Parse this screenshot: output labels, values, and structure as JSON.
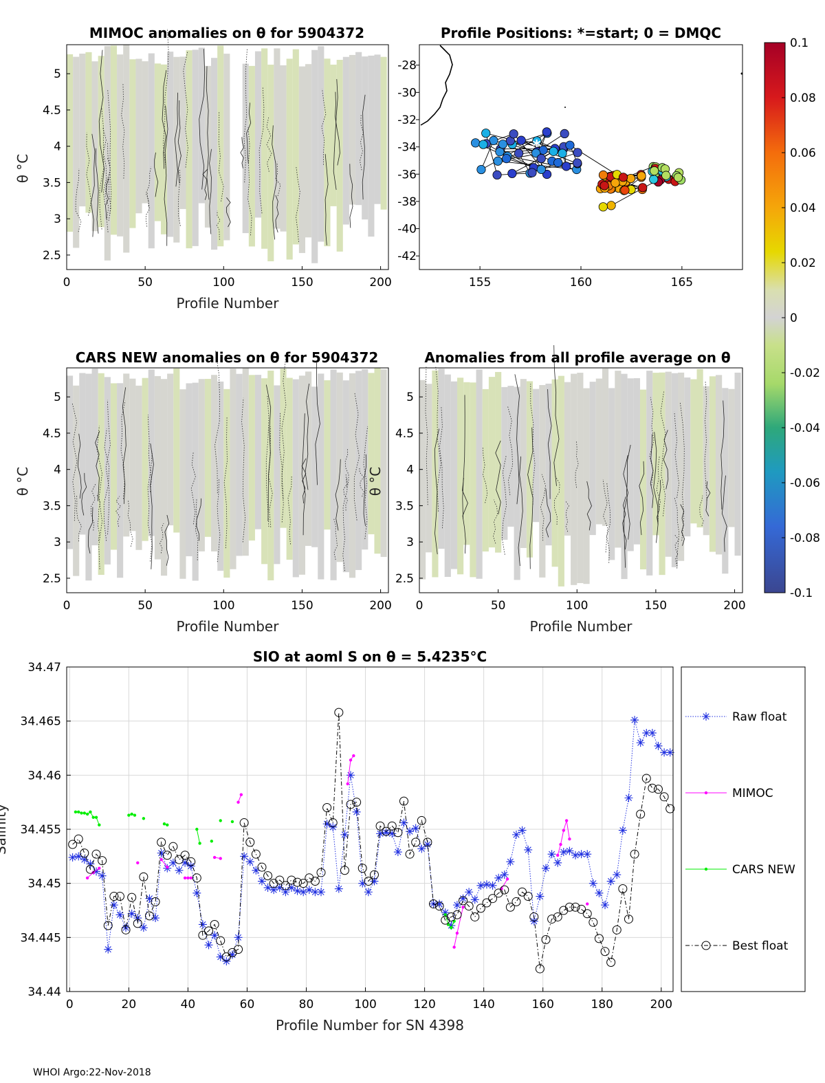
{
  "footer": "WHOI Argo:22-Nov-2018",
  "colorbar": {
    "ticks": [
      "0.1",
      "0.08",
      "0.06",
      "0.04",
      "0.02",
      "0",
      "-0.02",
      "-0.04",
      "-0.06",
      "-0.08",
      "-0.1"
    ],
    "colors": [
      "#a50026",
      "#c81616",
      "#e8460a",
      "#f07d0a",
      "#f0b400",
      "#e6d800",
      "#d2e04a",
      "#cfd3cf",
      "#d3d3d3",
      "#b4de60",
      "#5ec962",
      "#1fa187",
      "#21918c",
      "#2c7fb8",
      "#3b5bc8",
      "#3b4cc0"
    ]
  },
  "chart_data": [
    {
      "type": "heatmap",
      "title": "MIMOC anomalies on θ  for 5904372",
      "xlabel": "Profile Number",
      "ylabel": "θ °C",
      "xlim": [
        0,
        205
      ],
      "ylim": [
        2.3,
        5.4
      ],
      "xticks": [
        "0",
        "50",
        "100",
        "150",
        "200"
      ],
      "yticks": [
        "5",
        "4.5",
        "4",
        "3.5",
        "3",
        "2.5"
      ]
    },
    {
      "type": "scatter",
      "title": "Profile Positions: *=start; 0 = DMQC",
      "xlim": [
        152,
        168
      ],
      "ylim": [
        -43,
        -26.5
      ],
      "xticks": [
        "155",
        "160",
        "165"
      ],
      "yticks": [
        "-28",
        "-30",
        "-32",
        "-34",
        "-36",
        "-38",
        "-40",
        "-42"
      ]
    },
    {
      "type": "heatmap",
      "title": "CARS NEW anomalies on θ for 5904372",
      "xlabel": "Profile Number",
      "ylabel": "θ °C",
      "xlim": [
        0,
        205
      ],
      "ylim": [
        2.3,
        5.4
      ],
      "xticks": [
        "0",
        "50",
        "100",
        "150",
        "200"
      ],
      "yticks": [
        "5",
        "4.5",
        "4",
        "3.5",
        "3",
        "2.5"
      ]
    },
    {
      "type": "heatmap",
      "title": "Anomalies from all profile average on θ",
      "xlabel": "Profile Number",
      "ylabel": "θ °C",
      "xlim": [
        0,
        205
      ],
      "ylim": [
        2.3,
        5.4
      ],
      "xticks": [
        "0",
        "50",
        "100",
        "150",
        "200"
      ],
      "yticks": [
        "5",
        "4.5",
        "4",
        "3.5",
        "3",
        "2.5"
      ]
    },
    {
      "type": "line",
      "title": "SIO at aoml S on θ = 5.4235°C",
      "xlabel": "Profile Number for SN 4398",
      "ylabel": "Salinity",
      "xlim": [
        -1,
        204
      ],
      "ylim": [
        34.44,
        34.47
      ],
      "xticks": [
        "0",
        "20",
        "40",
        "60",
        "80",
        "100",
        "120",
        "140",
        "160",
        "180",
        "200"
      ],
      "yticks": [
        "34.47",
        "34.465",
        "34.46",
        "34.455",
        "34.45",
        "34.445",
        "34.44"
      ],
      "legend": [
        "Raw float",
        "MIMOC",
        "CARS NEW",
        "Best float"
      ],
      "legend_position": "outside-right",
      "series": [
        {
          "name": "Raw float",
          "x": [
            1,
            3,
            5,
            7,
            9,
            11,
            13,
            15,
            17,
            19,
            21,
            23,
            25,
            27,
            29,
            31,
            33,
            35,
            37,
            39,
            41,
            43,
            45,
            47,
            49,
            51,
            53,
            55,
            57,
            59,
            61,
            63,
            65,
            67,
            69,
            71,
            73,
            75,
            77,
            79,
            81,
            83,
            85,
            87,
            89,
            91,
            93,
            95,
            97,
            99,
            101,
            103,
            105,
            107,
            109,
            111,
            113,
            115,
            117,
            119,
            121,
            123,
            125,
            127,
            129,
            131,
            133,
            135,
            137,
            139,
            141,
            143,
            145,
            147,
            149,
            151,
            153,
            155,
            157,
            159,
            161,
            163,
            165,
            167,
            169,
            171,
            173,
            175,
            177,
            179,
            181,
            183,
            185,
            187,
            189,
            191,
            193,
            195,
            197,
            199,
            201,
            203
          ],
          "y": [
            34.4524,
            34.4525,
            34.4522,
            34.4518,
            34.4511,
            34.4507,
            34.4439,
            34.448,
            34.4471,
            34.4459,
            34.4472,
            34.4468,
            34.4459,
            34.4486,
            34.4468,
            34.4528,
            34.4514,
            34.4519,
            34.4512,
            34.4519,
            34.4516,
            34.4491,
            34.4462,
            34.4443,
            34.4452,
            34.4432,
            34.4428,
            34.4434,
            34.445,
            34.4525,
            34.452,
            34.4512,
            34.4502,
            34.4496,
            34.4494,
            34.4496,
            34.4492,
            34.4496,
            34.4493,
            34.4492,
            34.4494,
            34.4492,
            34.4492,
            34.4555,
            34.4552,
            34.4495,
            34.4545,
            34.46,
            34.4566,
            34.45,
            34.4492,
            34.4502,
            34.4546,
            34.4547,
            34.4546,
            34.4529,
            34.4556,
            34.4548,
            34.4551,
            34.4532,
            34.4536,
            34.4481,
            34.4481,
            34.4473,
            34.4461,
            34.448,
            34.4486,
            34.4492,
            34.4485,
            34.4498,
            34.4499,
            34.4498,
            34.4505,
            34.4508,
            34.452,
            34.4545,
            34.4549,
            34.4531,
            34.4465,
            34.4488,
            34.4514,
            34.4527,
            34.4519,
            34.4529,
            34.453,
            34.4526,
            34.4527,
            34.4527,
            34.45,
            34.4491,
            34.448,
            34.4502,
            34.4508,
            34.4549,
            34.4579,
            34.4651,
            34.463,
            34.4639,
            34.4639,
            34.4627,
            34.4621,
            34.4621
          ],
          "color": "#1f2fe0"
        },
        {
          "name": "MIMOC",
          "x": [
            6,
            8,
            10,
            23,
            31,
            33,
            39,
            40,
            41,
            49,
            51,
            57,
            58,
            94,
            95,
            96,
            130,
            131,
            133,
            146,
            148,
            165,
            166,
            167,
            168,
            169,
            175
          ],
          "y": [
            34.4505,
            34.451,
            34.4514,
            34.4519,
            34.4522,
            34.4515,
            34.4505,
            34.4505,
            34.4505,
            34.4524,
            34.4523,
            34.4575,
            34.4582,
            34.4592,
            34.4614,
            34.4618,
            34.4441,
            34.4454,
            34.4478,
            34.4495,
            34.4504,
            34.4526,
            34.4536,
            34.4549,
            34.4558,
            34.4541,
            34.4481
          ],
          "color": "#ff00ff"
        },
        {
          "name": "CARS NEW",
          "x": [
            2,
            3,
            4,
            5,
            6,
            7,
            8,
            9,
            10,
            20,
            21,
            22,
            25,
            32,
            33,
            43,
            44,
            48,
            51,
            55,
            127,
            128,
            129,
            130
          ],
          "y": [
            34.4566,
            34.4566,
            34.4565,
            34.4565,
            34.4564,
            34.4566,
            34.4561,
            34.4561,
            34.4554,
            34.4563,
            34.4564,
            34.4563,
            34.456,
            34.4555,
            34.4554,
            34.455,
            34.4537,
            34.4539,
            34.4558,
            34.4557,
            34.4471,
            34.4462,
            34.4459,
            34.4465
          ],
          "color": "#00ee00"
        },
        {
          "name": "Best float",
          "x": [
            1,
            3,
            5,
            7,
            9,
            11,
            13,
            15,
            17,
            19,
            21,
            23,
            25,
            27,
            29,
            31,
            33,
            35,
            37,
            39,
            41,
            43,
            45,
            47,
            49,
            51,
            53,
            55,
            57,
            59,
            61,
            63,
            65,
            67,
            69,
            71,
            73,
            75,
            77,
            79,
            81,
            83,
            85,
            87,
            89,
            91,
            93,
            95,
            97,
            99,
            101,
            103,
            105,
            107,
            109,
            111,
            113,
            115,
            117,
            119,
            121,
            123,
            125,
            127,
            129,
            131,
            133,
            135,
            137,
            139,
            141,
            143,
            145,
            147,
            149,
            151,
            153,
            155,
            157,
            159,
            161,
            163,
            165,
            167,
            169,
            171,
            173,
            175,
            177,
            179,
            181,
            183,
            185,
            187,
            189,
            191,
            193,
            195,
            197,
            199,
            201,
            203
          ],
          "y": [
            34.4536,
            34.4541,
            34.4528,
            34.4513,
            34.4527,
            34.4521,
            34.4461,
            34.4488,
            34.4488,
            34.4457,
            34.4487,
            34.4463,
            34.4506,
            34.447,
            34.4483,
            34.4538,
            34.4526,
            34.4534,
            34.4522,
            34.4526,
            34.452,
            34.4505,
            34.4452,
            34.4456,
            34.4462,
            34.4447,
            34.4432,
            34.4436,
            34.4439,
            34.4556,
            34.4538,
            34.4527,
            34.4515,
            34.4507,
            34.45,
            34.4503,
            34.4498,
            34.4503,
            34.4501,
            34.45,
            34.4505,
            34.4502,
            34.451,
            34.457,
            34.4556,
            34.4658,
            34.4512,
            34.4573,
            34.4575,
            34.4514,
            34.4502,
            34.4508,
            34.4553,
            34.4548,
            34.4553,
            34.4547,
            34.4576,
            34.4527,
            34.4538,
            34.4558,
            34.4538,
            34.4481,
            34.4479,
            34.4466,
            34.4469,
            34.4471,
            34.4484,
            34.4479,
            34.4469,
            34.4477,
            34.4482,
            34.4486,
            34.4491,
            34.4494,
            34.4478,
            34.4483,
            34.4492,
            34.4488,
            34.4469,
            34.4421,
            34.4448,
            34.4467,
            34.4469,
            34.4475,
            34.4478,
            34.4478,
            34.4476,
            34.4472,
            34.4464,
            34.4449,
            34.4437,
            34.4427,
            34.4457,
            34.4495,
            34.4467,
            34.4527,
            34.4564,
            34.4597,
            34.4588,
            34.4587,
            34.458,
            34.4569
          ],
          "color": "#000000"
        }
      ]
    }
  ]
}
